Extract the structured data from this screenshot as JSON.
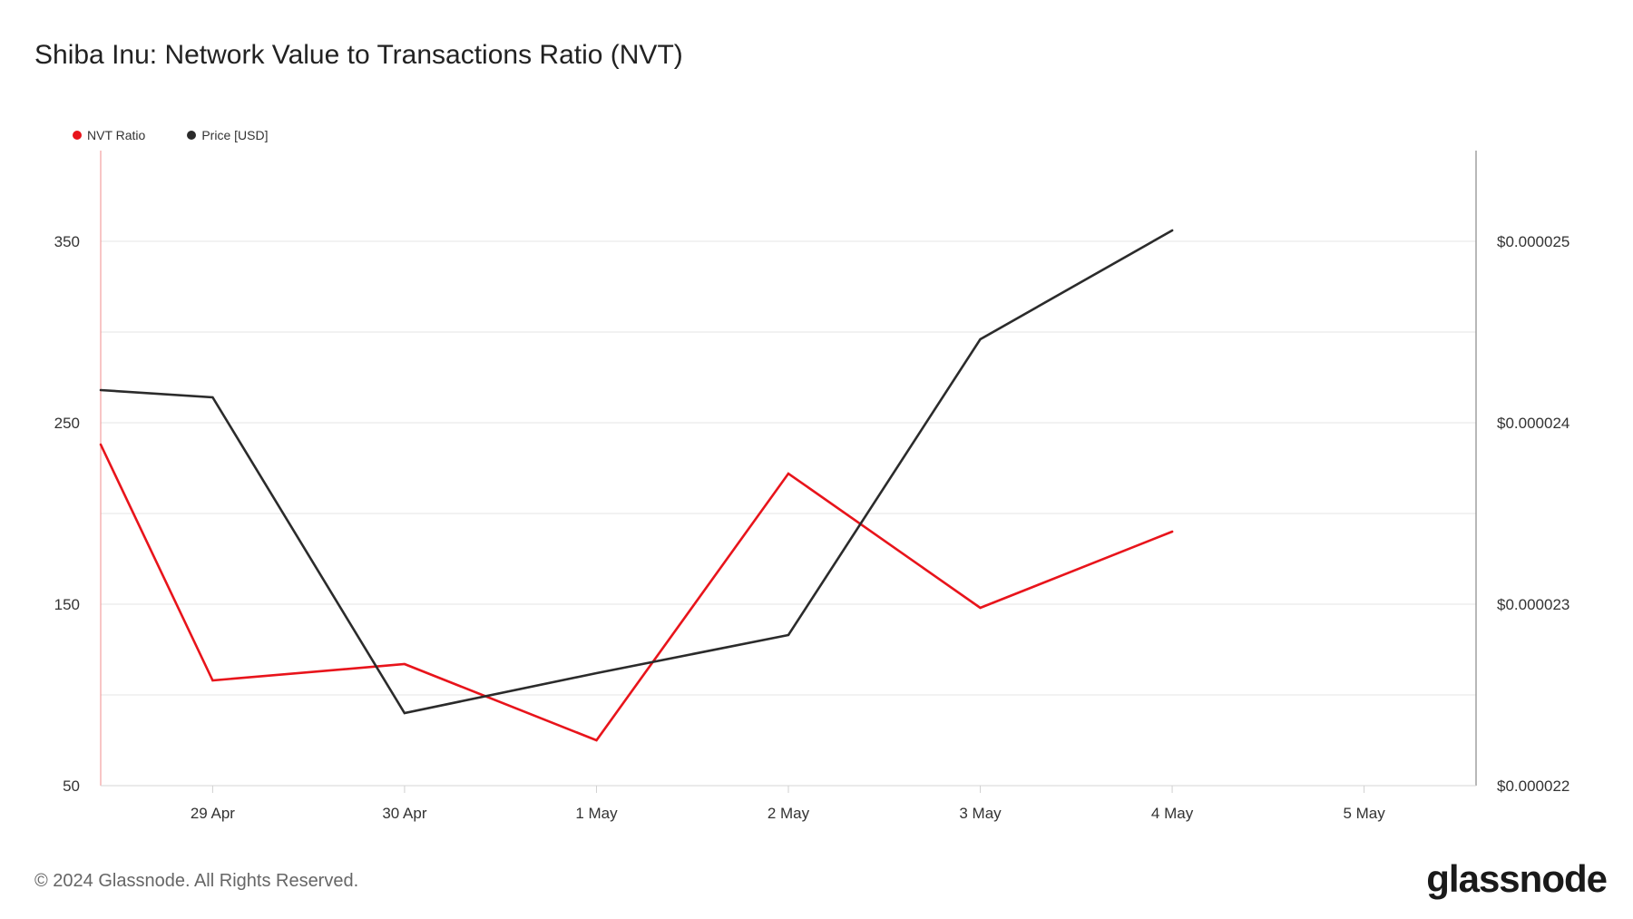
{
  "title": "Shiba Inu: Network Value to Transactions Ratio (NVT)",
  "footer": "© 2024 Glassnode. All Rights Reserved.",
  "brand": "glassnode",
  "legend": [
    {
      "label": "NVT Ratio",
      "color": "#e8141b"
    },
    {
      "label": "Price [USD]",
      "color": "#2b2b2b"
    }
  ],
  "chart_data": {
    "type": "line",
    "x_tick_labels": [
      "29 Apr",
      "30 Apr",
      "1 May",
      "2 May",
      "3 May",
      "4 May",
      "5 May"
    ],
    "y_left_ticks": [
      50,
      150,
      250,
      350
    ],
    "y_left_tick_labels": [
      "50",
      "150",
      "250",
      "350"
    ],
    "y_left_range": [
      50,
      400
    ],
    "y_right_ticks": [
      2.2e-05,
      2.3e-05,
      2.4e-05,
      2.5e-05
    ],
    "y_right_tick_labels": [
      "$0.000022",
      "$0.000023",
      "$0.000024",
      "$0.000025"
    ],
    "y_right_range": [
      2.2e-05,
      2.55e-05
    ],
    "x_range": [
      "28 Apr 10:00",
      "5 May 14:00"
    ],
    "grid": true,
    "series": [
      {
        "name": "NVT Ratio",
        "axis": "left",
        "color": "#e8141b",
        "points": [
          {
            "x": "28 Apr 10:00",
            "y": 238
          },
          {
            "x": "29 Apr",
            "y": 108
          },
          {
            "x": "30 Apr",
            "y": 117
          },
          {
            "x": "1 May",
            "y": 75
          },
          {
            "x": "2 May",
            "y": 222
          },
          {
            "x": "3 May",
            "y": 148
          },
          {
            "x": "4 May",
            "y": 190
          }
        ]
      },
      {
        "name": "Price [USD]",
        "axis": "right",
        "color": "#2b2b2b",
        "points": [
          {
            "x": "28 Apr 10:00",
            "y": 2.418e-05
          },
          {
            "x": "29 Apr",
            "y": 2.414e-05
          },
          {
            "x": "30 Apr",
            "y": 2.24e-05
          },
          {
            "x": "1 May",
            "y": 2.262e-05
          },
          {
            "x": "2 May",
            "y": 2.283e-05
          },
          {
            "x": "3 May",
            "y": 2.446e-05
          },
          {
            "x": "4 May",
            "y": 2.506e-05
          }
        ]
      }
    ]
  }
}
